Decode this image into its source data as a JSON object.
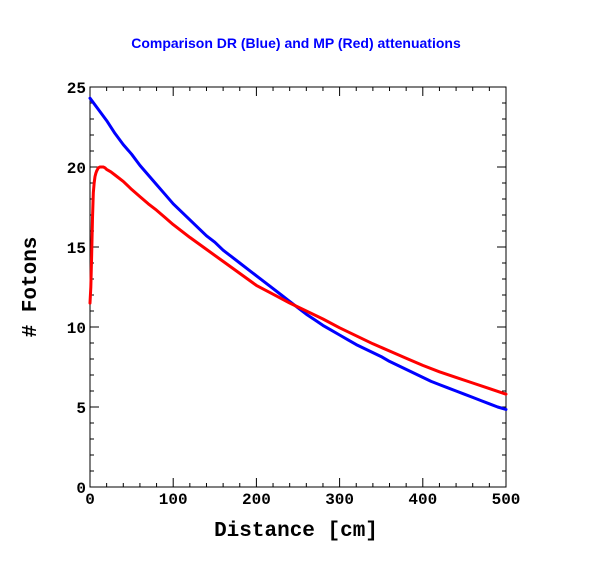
{
  "chart_data": {
    "type": "line",
    "title": "Comparison DR (Blue) and MP (Red) attenuations",
    "xlabel": "Distance [cm]",
    "ylabel": "# Fotons",
    "xlim": [
      0,
      500
    ],
    "ylim": [
      0,
      25
    ],
    "xticks": [
      0,
      100,
      200,
      300,
      400,
      500
    ],
    "yticks": [
      0,
      5,
      10,
      15,
      20,
      25
    ],
    "grid": false,
    "legend": "none",
    "colors": {
      "blue": "#0000ff",
      "red": "#ff0000",
      "title": "#0000ff"
    },
    "series": [
      {
        "color": "#0000ff",
        "x": [
          0,
          10,
          20,
          30,
          40,
          50,
          60,
          70,
          80,
          90,
          100,
          110,
          120,
          130,
          140,
          150,
          160,
          170,
          180,
          190,
          200,
          210,
          220,
          230,
          240,
          250,
          260,
          270,
          280,
          290,
          300,
          310,
          320,
          330,
          340,
          350,
          360,
          370,
          380,
          390,
          400,
          410,
          420,
          430,
          440,
          450,
          460,
          470,
          480,
          490,
          500
        ],
        "y": [
          24.3,
          23.6,
          22.9,
          22.1,
          21.4,
          20.8,
          20.1,
          19.5,
          18.9,
          18.3,
          17.7,
          17.2,
          16.7,
          16.2,
          15.7,
          15.3,
          14.8,
          14.4,
          14.0,
          13.6,
          13.2,
          12.8,
          12.4,
          12.0,
          11.6,
          11.2,
          10.8,
          10.45,
          10.1,
          9.8,
          9.5,
          9.2,
          8.9,
          8.65,
          8.4,
          8.15,
          7.85,
          7.6,
          7.35,
          7.1,
          6.85,
          6.6,
          6.4,
          6.2,
          6.0,
          5.8,
          5.6,
          5.4,
          5.2,
          5.0,
          4.85
        ]
      },
      {
        "color": "#ff0000",
        "x": [
          0,
          1,
          2,
          3,
          4,
          5,
          6,
          7,
          8,
          9,
          10,
          12,
          14,
          16,
          18,
          20,
          25,
          30,
          40,
          50,
          60,
          70,
          80,
          90,
          100,
          120,
          140,
          160,
          180,
          200,
          220,
          240,
          260,
          280,
          300,
          320,
          340,
          360,
          380,
          400,
          420,
          440,
          460,
          480,
          500
        ],
        "y": [
          11.5,
          12.5,
          14.5,
          16.8,
          18.4,
          19.0,
          19.4,
          19.6,
          19.75,
          19.85,
          19.95,
          20.0,
          20.0,
          20.0,
          19.95,
          19.85,
          19.7,
          19.5,
          19.1,
          18.6,
          18.15,
          17.7,
          17.3,
          16.85,
          16.4,
          15.6,
          14.85,
          14.1,
          13.35,
          12.6,
          12.05,
          11.5,
          11.0,
          10.5,
          9.95,
          9.45,
          8.95,
          8.5,
          8.05,
          7.6,
          7.2,
          6.85,
          6.5,
          6.15,
          5.8
        ]
      }
    ]
  }
}
